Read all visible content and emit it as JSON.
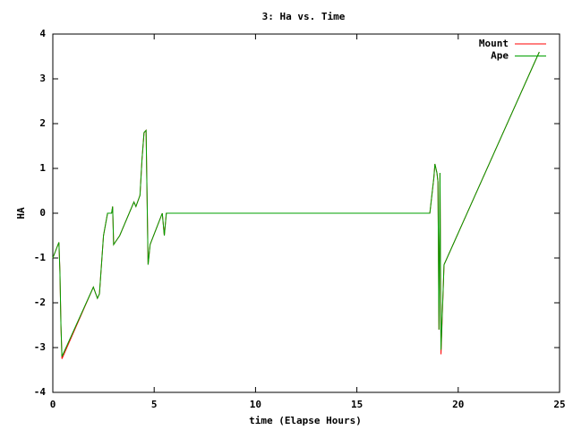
{
  "chart_data": {
    "type": "line",
    "title": "3: Ha vs. Time",
    "x_label": "time (Elapse Hours)",
    "y_label": "HA",
    "xlim": [
      0,
      25
    ],
    "xticks": [
      0,
      5,
      10,
      15,
      20,
      25
    ],
    "ylim": [
      -4,
      4
    ],
    "yticks": [
      -4,
      -3,
      -2,
      -1,
      0,
      1,
      2,
      3,
      4
    ],
    "legend": "top-right",
    "series": [
      {
        "name": "Mount",
        "color": "#ff0000",
        "x": [
          0,
          0.3,
          0.35,
          0.4,
          0.45,
          2.0,
          2.2,
          2.3,
          2.5,
          2.7,
          2.9,
          2.95,
          3.0,
          3.3,
          4.0,
          4.1,
          4.3,
          4.4,
          4.5,
          4.6,
          4.7,
          4.8,
          5.4,
          5.5,
          5.6,
          18.6,
          18.8,
          18.85,
          18.95,
          19.0,
          19.05,
          19.1,
          19.15,
          19.3,
          23.8,
          24.0
        ],
        "values": [
          -1,
          -0.65,
          -1.3,
          -2.5,
          -3.25,
          -1.65,
          -1.9,
          -1.8,
          -0.5,
          0,
          0,
          0.15,
          -0.7,
          -0.5,
          0.25,
          0.15,
          0.4,
          1.2,
          1.8,
          1.85,
          -1.15,
          -0.7,
          0,
          -0.5,
          0,
          0,
          0.8,
          1.1,
          0.9,
          0.7,
          -2.6,
          0.9,
          -3.15,
          -1.15,
          3.4,
          3.6
        ]
      },
      {
        "name": "Ape",
        "color": "#00a000",
        "x": [
          0,
          0.3,
          0.35,
          0.4,
          0.45,
          2.0,
          2.2,
          2.3,
          2.5,
          2.7,
          2.9,
          2.95,
          3.0,
          3.3,
          4.0,
          4.1,
          4.3,
          4.4,
          4.5,
          4.6,
          4.7,
          4.8,
          5.4,
          5.5,
          5.6,
          18.6,
          18.8,
          18.85,
          18.95,
          19.0,
          19.05,
          19.1,
          19.15,
          19.3,
          23.8,
          24.0
        ],
        "values": [
          -1,
          -0.65,
          -1.3,
          -2.5,
          -3.2,
          -1.65,
          -1.9,
          -1.8,
          -0.5,
          0,
          0,
          0.15,
          -0.7,
          -0.5,
          0.25,
          0.15,
          0.4,
          1.2,
          1.8,
          1.85,
          -1.15,
          -0.7,
          0,
          -0.5,
          0,
          0,
          0.8,
          1.1,
          0.9,
          0.7,
          -2.6,
          0.9,
          -3.05,
          -1.15,
          3.4,
          3.6
        ]
      }
    ]
  }
}
